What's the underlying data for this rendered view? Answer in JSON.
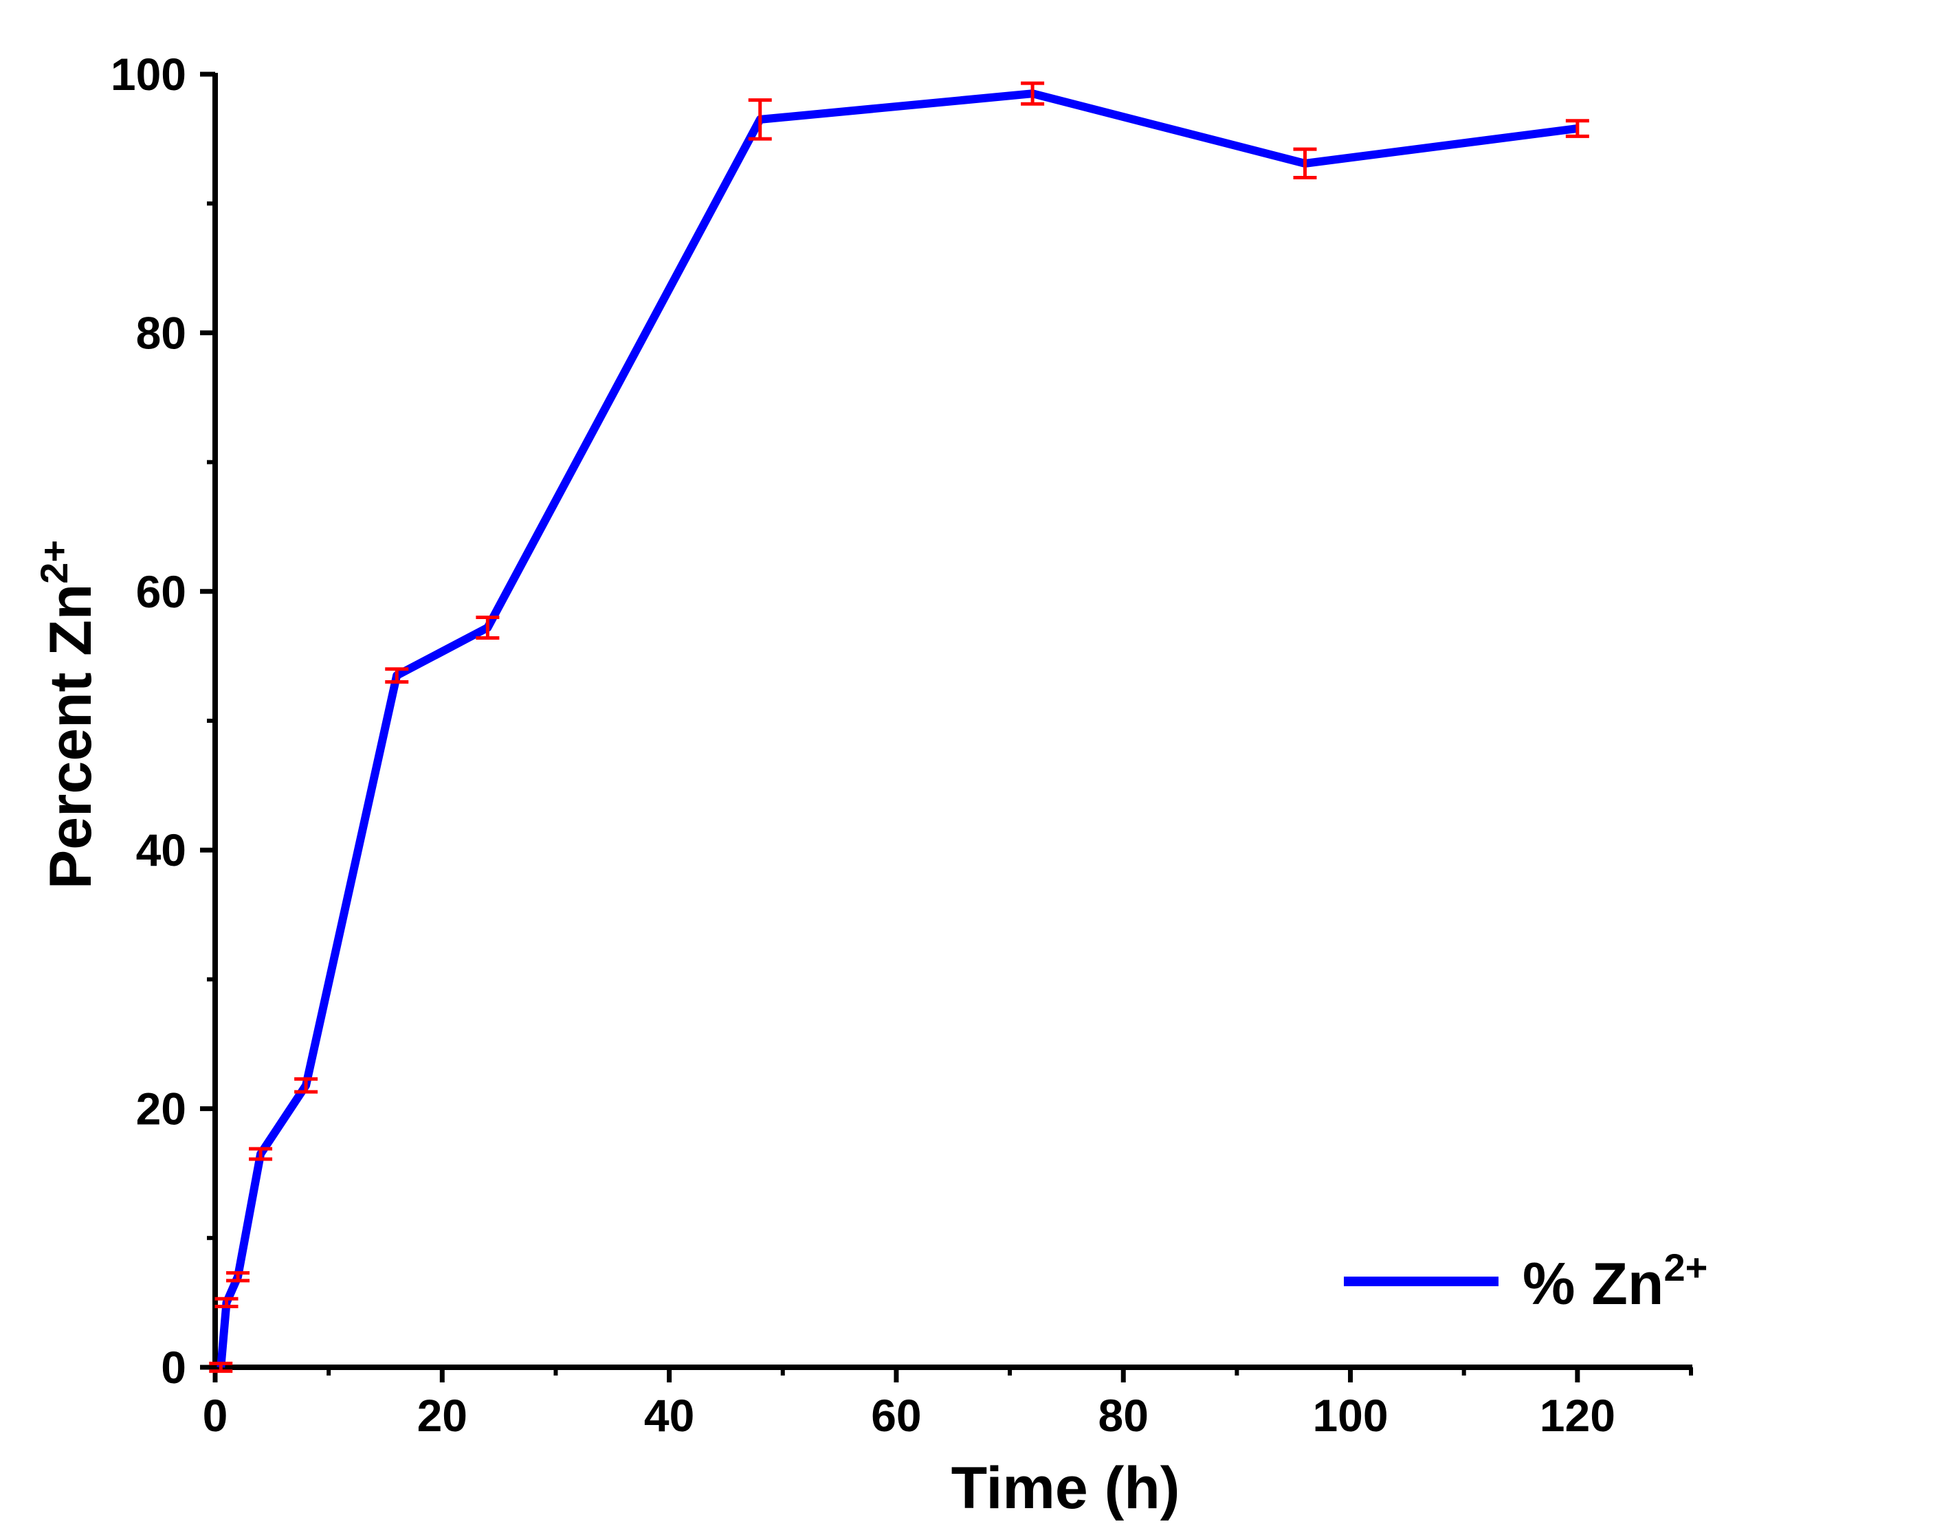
{
  "chart_data": {
    "type": "line",
    "title": "",
    "xlabel": "Time (h)",
    "ylabel": {
      "base": "Percent Zn",
      "sup": "2+"
    },
    "xlim": [
      0,
      130
    ],
    "ylim": [
      0,
      100
    ],
    "xticks": [
      0,
      20,
      40,
      60,
      80,
      100,
      120
    ],
    "yticks": [
      0,
      20,
      40,
      60,
      80,
      100
    ],
    "xminor": [
      10,
      30,
      50,
      70,
      90,
      110,
      130
    ],
    "yminor": [
      10,
      30,
      50,
      70,
      90
    ],
    "grid": false,
    "legend_position": "bottom-right",
    "series": [
      {
        "name": {
          "base": "% Zn",
          "sup": "2+"
        },
        "color": "#0000ff",
        "error_color": "#ff0000",
        "x": [
          0.5,
          1,
          2,
          4,
          8,
          16,
          24,
          48,
          72,
          96,
          120
        ],
        "y": [
          0,
          5,
          7,
          16.5,
          21.8,
          53.5,
          57.2,
          96.5,
          98.5,
          93.1,
          95.8
        ],
        "err": [
          0.3,
          0.3,
          0.3,
          0.4,
          0.5,
          0.5,
          0.8,
          1.5,
          0.8,
          1.1,
          0.6
        ]
      }
    ]
  }
}
